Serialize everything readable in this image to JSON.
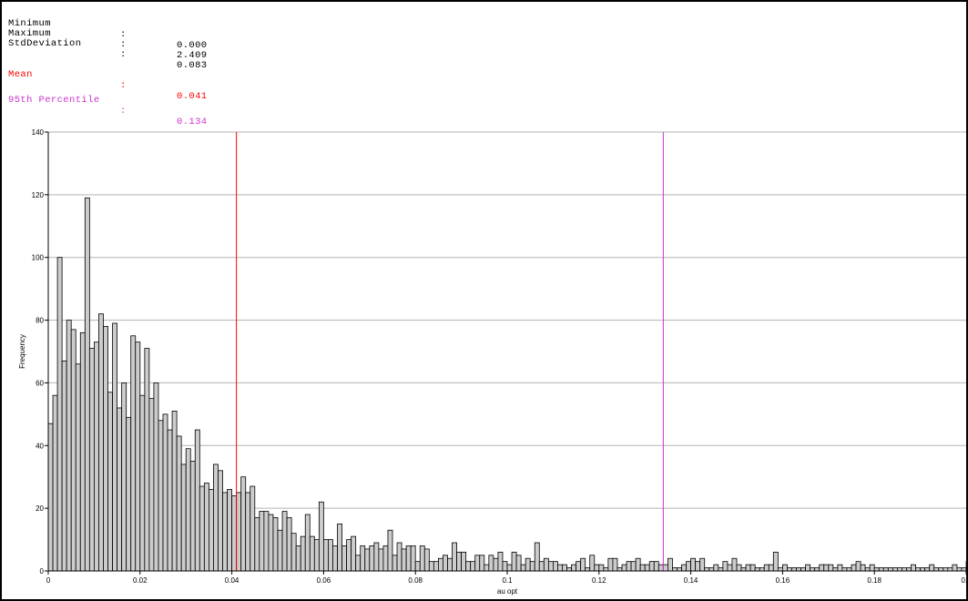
{
  "stats": [
    {
      "label": "Minimum",
      "value": "0.000",
      "color": "#000000"
    },
    {
      "label": "Maximum",
      "value": "2.409",
      "color": "#000000"
    },
    {
      "label": "StdDeviation",
      "value": "0.083",
      "color": "#000000"
    },
    {
      "label": "Mean",
      "value": "0.041",
      "color": "#ff0000"
    },
    {
      "label": "95th Percentile",
      "value": "0.134",
      "color": "#cc33cc"
    }
  ],
  "stat_separator": ":",
  "chart_data": {
    "type": "bar",
    "title": "",
    "xlabel": "au opt",
    "ylabel": "Frequency",
    "xlim": [
      0,
      0.2
    ],
    "ylim": [
      0,
      140
    ],
    "xticks": [
      0,
      0.02,
      0.04,
      0.06,
      0.08,
      0.1,
      0.12,
      0.14,
      0.16,
      0.18,
      0.2
    ],
    "xtick_labels": [
      "0",
      "0.02",
      "0.04",
      "0.06",
      "0.08",
      "0.1",
      "0.12",
      "0.14",
      "0.16",
      "0.18",
      "0.2"
    ],
    "yticks": [
      0,
      20,
      40,
      60,
      80,
      100,
      120,
      140
    ],
    "ytick_labels": [
      "0",
      "20",
      "40",
      "60",
      "80",
      "100",
      "120",
      "140"
    ],
    "grid": true,
    "bin_width": 0.001,
    "bar_color": "#cccccc",
    "bar_edge_color": "#000000",
    "frequencies": [
      47,
      56,
      100,
      67,
      80,
      77,
      66,
      76,
      119,
      71,
      73,
      82,
      78,
      57,
      79,
      52,
      60,
      49,
      75,
      73,
      56,
      71,
      55,
      60,
      48,
      50,
      45,
      51,
      43,
      34,
      39,
      35,
      45,
      27,
      28,
      26,
      34,
      32,
      25,
      26,
      24,
      25,
      30,
      25,
      27,
      17,
      19,
      19,
      18,
      17,
      13,
      19,
      17,
      12,
      8,
      11,
      18,
      11,
      10,
      22,
      10,
      10,
      8,
      15,
      8,
      10,
      11,
      5,
      8,
      7,
      8,
      9,
      7,
      8,
      13,
      5,
      9,
      7,
      8,
      8,
      3,
      8,
      7,
      3,
      3,
      4,
      5,
      4,
      9,
      6,
      6,
      3,
      3,
      5,
      5,
      2,
      5,
      4,
      6,
      3,
      2,
      6,
      5,
      2,
      4,
      3,
      9,
      3,
      4,
      3,
      3,
      2,
      2,
      1,
      2,
      3,
      4,
      1,
      5,
      2,
      2,
      1,
      4,
      4,
      1,
      2,
      3,
      3,
      4,
      2,
      2,
      3,
      3,
      2,
      2,
      4,
      1,
      1,
      2,
      3,
      4,
      3,
      4,
      1,
      1,
      2,
      1,
      3,
      2,
      4,
      2,
      1,
      2,
      2,
      1,
      1,
      2,
      2,
      6,
      1,
      2,
      1,
      1,
      1,
      1,
      2,
      1,
      1,
      2,
      2,
      2,
      1,
      2,
      1,
      1,
      2,
      3,
      2,
      1,
      2,
      1,
      1,
      1,
      1,
      1,
      1,
      1,
      1,
      2,
      1,
      1,
      1,
      2,
      1,
      1,
      1,
      1,
      2,
      1,
      1,
      3,
      1,
      1,
      1,
      1,
      1,
      1,
      1,
      1,
      1,
      1,
      1
    ],
    "vlines": [
      {
        "name": "Mean",
        "x": 0.041,
        "color": "#ff0000"
      },
      {
        "name": "95th Percentile",
        "x": 0.134,
        "color": "#cc33cc"
      }
    ]
  }
}
